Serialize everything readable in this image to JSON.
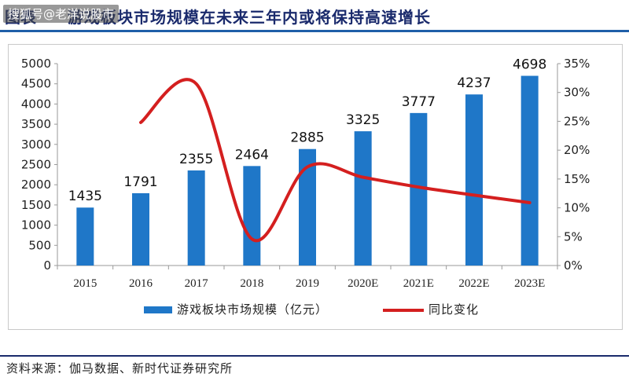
{
  "header": {
    "prefix": "图表",
    "title": "游戏板块市场规模在未来三年内或将保持高速增长",
    "watermark": "搜狐号@老洋说股市"
  },
  "chart_data": {
    "type": "bar+line",
    "title": "游戏板块市场规模在未来三年内或将保持高速增长",
    "categories": [
      "2015",
      "2016",
      "2017",
      "2018",
      "2019",
      "2020E",
      "2021E",
      "2022E",
      "2023E"
    ],
    "series": [
      {
        "name": "游戏板块市场规模（亿元）",
        "type": "bar",
        "axis": "left",
        "color": "#1f77c8",
        "values": [
          1435,
          1791,
          2355,
          2464,
          2885,
          3325,
          3777,
          4237,
          4698
        ]
      },
      {
        "name": "同比变化",
        "type": "line",
        "axis": "right",
        "color": "#d41f1f",
        "values": [
          null,
          24.8,
          31.5,
          4.6,
          17.1,
          15.3,
          13.6,
          12.2,
          10.9
        ]
      }
    ],
    "y_left": {
      "min": 0,
      "max": 5000,
      "step": 500,
      "ticks": [
        "0",
        "500",
        "1000",
        "1500",
        "2000",
        "2500",
        "3000",
        "3500",
        "4000",
        "4500",
        "5000"
      ]
    },
    "y_right": {
      "min": 0,
      "max": 35,
      "step": 5,
      "ticks": [
        "0%",
        "5%",
        "10%",
        "15%",
        "20%",
        "25%",
        "30%",
        "35%"
      ]
    },
    "data_labels": [
      "1435",
      "1791",
      "2355",
      "2464",
      "2885",
      "3325",
      "3777",
      "4237",
      "4698"
    ],
    "legend": {
      "position": "bottom",
      "items": [
        {
          "label": "游戏板块市场规模（亿元）",
          "color": "#1f77c8",
          "kind": "bar"
        },
        {
          "label": "同比变化",
          "color": "#d41f1f",
          "kind": "line"
        }
      ]
    },
    "grid": false
  },
  "footer": {
    "source": "资料来源：伽马数据、新时代证券研究所"
  }
}
